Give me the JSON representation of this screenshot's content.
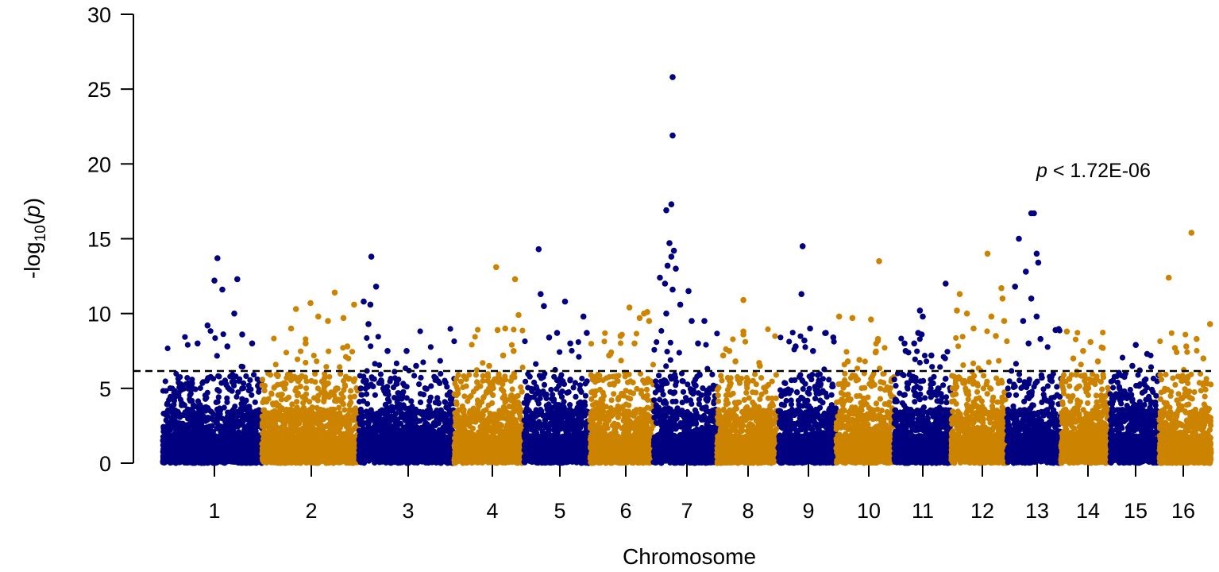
{
  "chart_data": {
    "type": "scatter",
    "title": "",
    "xlabel": "Chromosome",
    "ylabel_prefix": "-log",
    "ylabel_sub": "10",
    "ylabel_open": "(",
    "ylabel_var": "p",
    "ylabel_close": ")",
    "ylim": [
      0,
      30
    ],
    "yticks": [
      0,
      5,
      10,
      15,
      20,
      25,
      30
    ],
    "grid": false,
    "colors": {
      "odd": "#000080",
      "even": "#CC8400"
    },
    "threshold": {
      "value": 6.16,
      "label_var": "p",
      "label_rest": " < 1.72E-06"
    },
    "chromosomes": [
      {
        "label": "1",
        "tick": 270,
        "start": 205,
        "end": 330,
        "max": 13.7,
        "peaks": [
          [
            0.55,
            13.7
          ],
          [
            0.52,
            12.2
          ],
          [
            0.75,
            12.3
          ],
          [
            0.6,
            11.6
          ],
          [
            0.72,
            10.0
          ],
          [
            0.45,
            9.2
          ],
          [
            0.8,
            8.6
          ],
          [
            0.9,
            8.0
          ],
          [
            0.35,
            8.0
          ],
          [
            0.65,
            7.8
          ]
        ]
      },
      {
        "label": "2",
        "tick": 392,
        "start": 330,
        "end": 452,
        "max": 11.4,
        "peaks": [
          [
            0.75,
            11.4
          ],
          [
            0.5,
            10.7
          ],
          [
            0.35,
            10.3
          ],
          [
            0.95,
            10.6
          ],
          [
            0.58,
            9.8
          ],
          [
            0.68,
            9.5
          ],
          [
            0.84,
            9.7
          ],
          [
            0.3,
            9.0
          ],
          [
            0.45,
            8.0
          ],
          [
            0.88,
            7.8
          ]
        ]
      },
      {
        "label": "3",
        "tick": 514,
        "start": 452,
        "end": 572,
        "max": 13.8,
        "peaks": [
          [
            0.13,
            13.8
          ],
          [
            0.18,
            11.8
          ],
          [
            0.05,
            10.8
          ],
          [
            0.12,
            10.6
          ],
          [
            0.1,
            9.3
          ],
          [
            0.3,
            7.5
          ],
          [
            0.5,
            7.5
          ],
          [
            0.6,
            6.5
          ]
        ]
      },
      {
        "label": "4",
        "tick": 620,
        "start": 572,
        "end": 660,
        "max": 13.1,
        "peaks": [
          [
            0.6,
            13.1
          ],
          [
            0.87,
            12.3
          ],
          [
            0.92,
            9.9
          ],
          [
            0.73,
            9.0
          ],
          [
            0.62,
            8.9
          ],
          [
            0.85,
            7.5
          ],
          [
            0.7,
            7.2
          ],
          [
            0.5,
            6.5
          ]
        ]
      },
      {
        "label": "5",
        "tick": 705,
        "start": 660,
        "end": 743,
        "max": 14.3,
        "peaks": [
          [
            0.22,
            14.3
          ],
          [
            0.25,
            11.3
          ],
          [
            0.3,
            10.5
          ],
          [
            0.62,
            10.8
          ],
          [
            0.9,
            9.8
          ],
          [
            0.5,
            8.7
          ],
          [
            0.95,
            8.7
          ],
          [
            0.38,
            8.4
          ],
          [
            0.7,
            8.0
          ]
        ]
      },
      {
        "label": "6",
        "tick": 788,
        "start": 743,
        "end": 823,
        "max": 10.4,
        "peaks": [
          [
            0.62,
            10.4
          ],
          [
            0.9,
            10.1
          ],
          [
            0.85,
            10.0
          ],
          [
            0.78,
            9.7
          ],
          [
            0.93,
            9.5
          ],
          [
            0.48,
            8.5
          ],
          [
            0.7,
            8.0
          ],
          [
            0.3,
            7.2
          ]
        ]
      },
      {
        "label": "7",
        "tick": 865,
        "start": 823,
        "end": 903,
        "max": 25.8,
        "peaks": [
          [
            0.3,
            25.8
          ],
          [
            0.3,
            21.9
          ],
          [
            0.28,
            17.3
          ],
          [
            0.2,
            16.9
          ],
          [
            0.25,
            14.7
          ],
          [
            0.32,
            14.2
          ],
          [
            0.28,
            13.8
          ],
          [
            0.22,
            13.2
          ],
          [
            0.35,
            13.0
          ],
          [
            0.1,
            12.4
          ],
          [
            0.18,
            12.0
          ],
          [
            0.3,
            11.6
          ],
          [
            0.55,
            11.5
          ],
          [
            0.42,
            10.6
          ],
          [
            0.2,
            10.0
          ],
          [
            0.6,
            9.5
          ],
          [
            0.8,
            9.5
          ],
          [
            0.7,
            8.0
          ]
        ]
      },
      {
        "label": "8",
        "tick": 942,
        "start": 903,
        "end": 980,
        "max": 10.9,
        "peaks": [
          [
            0.43,
            10.9
          ],
          [
            0.43,
            8.8
          ],
          [
            0.43,
            8.6
          ],
          [
            0.2,
            7.5
          ],
          [
            0.1,
            7.2
          ],
          [
            0.3,
            6.8
          ],
          [
            0.7,
            6.5
          ]
        ]
      },
      {
        "label": "9",
        "tick": 1018,
        "start": 980,
        "end": 1053,
        "max": 14.5,
        "peaks": [
          [
            0.42,
            14.5
          ],
          [
            0.4,
            11.3
          ],
          [
            0.55,
            9.0
          ],
          [
            0.82,
            8.7
          ],
          [
            0.95,
            8.4
          ],
          [
            0.3,
            7.8
          ],
          [
            0.45,
            8.2
          ],
          [
            0.6,
            7.5
          ]
        ]
      },
      {
        "label": "10",
        "tick": 1094,
        "start": 1053,
        "end": 1126,
        "max": 13.5,
        "peaks": [
          [
            0.74,
            13.5
          ],
          [
            0.05,
            9.8
          ],
          [
            0.28,
            9.7
          ],
          [
            0.6,
            9.6
          ],
          [
            0.72,
            8.3
          ],
          [
            0.68,
            7.4
          ],
          [
            0.4,
            6.9
          ],
          [
            0.2,
            6.8
          ]
        ]
      },
      {
        "label": "11",
        "tick": 1162,
        "start": 1126,
        "end": 1198,
        "max": 12.0,
        "peaks": [
          [
            0.9,
            12.0
          ],
          [
            0.45,
            10.2
          ],
          [
            0.5,
            9.8
          ],
          [
            0.42,
            8.7
          ],
          [
            0.48,
            8.6
          ],
          [
            0.35,
            8.0
          ],
          [
            0.18,
            8.0
          ],
          [
            0.2,
            7.5
          ],
          [
            0.65,
            7.2
          ]
        ]
      },
      {
        "label": "12",
        "tick": 1237,
        "start": 1198,
        "end": 1268,
        "max": 14.0,
        "peaks": [
          [
            0.65,
            14.0
          ],
          [
            0.9,
            11.7
          ],
          [
            0.15,
            11.3
          ],
          [
            0.92,
            11.0
          ],
          [
            0.1,
            10.2
          ],
          [
            0.28,
            10.0
          ],
          [
            0.72,
            9.8
          ],
          [
            0.95,
            9.5
          ],
          [
            0.4,
            9.0
          ],
          [
            0.8,
            8.5
          ]
        ]
      },
      {
        "label": "13",
        "tick": 1306,
        "start": 1268,
        "end": 1336,
        "max": 16.7,
        "peaks": [
          [
            0.45,
            16.7
          ],
          [
            0.5,
            16.7
          ],
          [
            0.22,
            15.0
          ],
          [
            0.55,
            14.0
          ],
          [
            0.58,
            13.4
          ],
          [
            0.35,
            12.8
          ],
          [
            0.15,
            11.8
          ],
          [
            0.45,
            11.0
          ],
          [
            0.55,
            9.8
          ],
          [
            0.3,
            9.5
          ],
          [
            0.9,
            8.9
          ],
          [
            0.62,
            8.3
          ],
          [
            0.4,
            8.0
          ]
        ]
      },
      {
        "label": "14",
        "tick": 1370,
        "start": 1336,
        "end": 1398,
        "max": 8.8,
        "peaks": [
          [
            0.12,
            8.8
          ],
          [
            0.6,
            8.1
          ],
          [
            0.85,
            7.7
          ],
          [
            0.45,
            7.5
          ],
          [
            0.25,
            7.0
          ],
          [
            0.75,
            6.8
          ]
        ]
      },
      {
        "label": "15",
        "tick": 1430,
        "start": 1398,
        "end": 1460,
        "max": 7.9,
        "peaks": [
          [
            0.52,
            7.9
          ],
          [
            0.45,
            6.5
          ],
          [
            0.75,
            7.3
          ],
          [
            0.6,
            6.2
          ]
        ]
      },
      {
        "label": "16",
        "tick": 1490,
        "start": 1460,
        "end": 1525,
        "max": 15.4,
        "peaks": [
          [
            0.62,
            15.4
          ],
          [
            0.18,
            12.4
          ],
          [
            0.98,
            9.3
          ],
          [
            0.72,
            8.3
          ],
          [
            0.52,
            7.8
          ],
          [
            0.3,
            7.7
          ],
          [
            0.85,
            7.0
          ]
        ]
      }
    ]
  }
}
